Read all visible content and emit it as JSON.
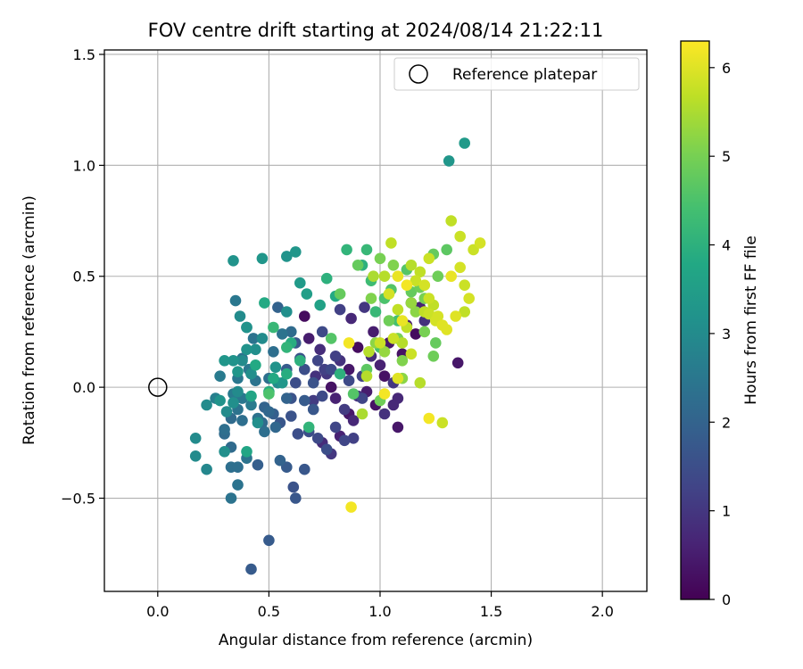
{
  "chart_data": {
    "type": "scatter",
    "title": "FOV centre drift starting at 2024/08/14 21:22:11",
    "xlabel": "Angular distance from reference (arcmin)",
    "ylabel": "Rotation from reference (arcmin)",
    "xlim": [
      -0.24,
      2.2
    ],
    "ylim": [
      -0.92,
      1.52
    ],
    "xticks": [
      0.0,
      0.5,
      1.0,
      1.5,
      2.0
    ],
    "xtick_labels": [
      "0.0",
      "0.5",
      "1.0",
      "1.5",
      "2.0"
    ],
    "yticks": [
      -0.5,
      0.0,
      0.5,
      1.0,
      1.5
    ],
    "ytick_labels": [
      "−0.5",
      "0.0",
      "0.5",
      "1.0",
      "1.5"
    ],
    "grid": true,
    "legend": {
      "placement": "top-right",
      "entries": [
        "Reference platepar"
      ]
    },
    "reference_point": {
      "name": "Reference platepar",
      "x": 0.0,
      "y": 0.0
    },
    "colorbar": {
      "label": "Hours from first FF file",
      "range": [
        0,
        6.3
      ],
      "ticks": [
        0,
        1,
        2,
        3,
        4,
        5,
        6
      ],
      "tick_labels": [
        "0",
        "1",
        "2",
        "3",
        "4",
        "5",
        "6"
      ],
      "colormap": "viridis"
    },
    "points": [
      [
        0.66,
        0.32,
        0.2
      ],
      [
        0.68,
        0.22,
        0.5
      ],
      [
        0.73,
        0.17,
        0.8
      ],
      [
        0.76,
        0.06,
        1.0
      ],
      [
        0.78,
        0.0,
        0.3
      ],
      [
        0.8,
        -0.05,
        0.6
      ],
      [
        0.82,
        0.12,
        0.9
      ],
      [
        0.84,
        -0.1,
        1.1
      ],
      [
        0.86,
        0.08,
        0.4
      ],
      [
        0.88,
        -0.15,
        0.7
      ],
      [
        0.9,
        0.18,
        0.2
      ],
      [
        0.92,
        0.05,
        1.2
      ],
      [
        0.94,
        -0.02,
        0.5
      ],
      [
        0.96,
        0.14,
        0.8
      ],
      [
        0.98,
        -0.08,
        0.3
      ],
      [
        1.0,
        0.1,
        0.6
      ],
      [
        1.02,
        -0.12,
        0.9
      ],
      [
        1.04,
        0.2,
        0.4
      ],
      [
        1.06,
        0.02,
        1.0
      ],
      [
        1.08,
        -0.05,
        0.7
      ],
      [
        1.1,
        0.15,
        0.3
      ],
      [
        1.12,
        0.28,
        0.5
      ],
      [
        1.14,
        0.38,
        0.8
      ],
      [
        1.16,
        0.24,
        0.2
      ],
      [
        1.18,
        0.36,
        0.6
      ],
      [
        1.2,
        0.3,
        0.9
      ],
      [
        0.7,
        -0.06,
        1.1
      ],
      [
        0.74,
        -0.25,
        0.8
      ],
      [
        0.78,
        -0.3,
        1.0
      ],
      [
        0.82,
        -0.22,
        0.6
      ],
      [
        0.86,
        -0.12,
        0.4
      ],
      [
        0.9,
        -0.04,
        0.9
      ],
      [
        0.97,
        0.25,
        0.5
      ],
      [
        1.02,
        0.05,
        0.3
      ],
      [
        1.06,
        -0.08,
        0.7
      ],
      [
        1.08,
        -0.18,
        0.4
      ],
      [
        1.35,
        0.11,
        0.4
      ],
      [
        0.87,
        0.31,
        0.7
      ],
      [
        0.82,
        0.35,
        1.2
      ],
      [
        0.93,
        0.36,
        1.0
      ],
      [
        0.75,
        0.08,
        1.2
      ],
      [
        0.71,
        0.05,
        0.9
      ],
      [
        0.42,
        -0.82,
        1.8
      ],
      [
        0.5,
        -0.69,
        1.8
      ],
      [
        0.62,
        -0.5,
        1.7
      ],
      [
        0.61,
        -0.45,
        1.6
      ],
      [
        0.45,
        -0.35,
        1.9
      ],
      [
        0.55,
        -0.33,
        2.0
      ],
      [
        0.58,
        -0.36,
        1.8
      ],
      [
        0.66,
        -0.37,
        1.7
      ],
      [
        0.63,
        -0.21,
        1.5
      ],
      [
        0.6,
        -0.13,
        1.6
      ],
      [
        0.52,
        -0.12,
        1.9
      ],
      [
        0.48,
        -0.09,
        2.0
      ],
      [
        0.55,
        -0.16,
        1.7
      ],
      [
        0.6,
        -0.05,
        1.6
      ],
      [
        0.62,
        0.02,
        1.5
      ],
      [
        0.58,
        0.08,
        1.8
      ],
      [
        0.64,
        0.13,
        1.6
      ],
      [
        0.7,
        -0.1,
        1.7
      ],
      [
        0.68,
        -0.2,
        1.5
      ],
      [
        0.72,
        -0.23,
        1.4
      ],
      [
        0.76,
        -0.28,
        1.5
      ],
      [
        0.8,
        -0.18,
        1.3
      ],
      [
        0.74,
        -0.04,
        1.4
      ],
      [
        0.7,
        0.02,
        1.6
      ],
      [
        0.72,
        0.12,
        1.3
      ],
      [
        0.78,
        0.08,
        1.4
      ],
      [
        0.8,
        0.14,
        1.2
      ],
      [
        0.66,
        0.08,
        1.5
      ],
      [
        0.62,
        0.2,
        1.7
      ],
      [
        0.74,
        0.25,
        1.4
      ],
      [
        0.66,
        -0.06,
        1.8
      ],
      [
        0.54,
        0.36,
        2.0
      ],
      [
        0.58,
        -0.05,
        2.0
      ],
      [
        0.84,
        -0.24,
        1.3
      ],
      [
        0.88,
        -0.23,
        1.2
      ],
      [
        0.92,
        -0.05,
        1.3
      ],
      [
        0.86,
        0.03,
        1.4
      ],
      [
        0.33,
        -0.5,
        2.4
      ],
      [
        0.36,
        -0.44,
        2.4
      ],
      [
        0.33,
        -0.36,
        2.3
      ],
      [
        0.3,
        -0.21,
        2.2
      ],
      [
        0.33,
        -0.27,
        2.2
      ],
      [
        0.36,
        -0.36,
        2.3
      ],
      [
        0.4,
        -0.32,
        2.4
      ],
      [
        0.3,
        -0.19,
        2.3
      ],
      [
        0.33,
        -0.14,
        2.2
      ],
      [
        0.36,
        -0.1,
        2.4
      ],
      [
        0.38,
        -0.05,
        2.5
      ],
      [
        0.42,
        -0.08,
        2.6
      ],
      [
        0.38,
        -0.15,
        2.3
      ],
      [
        0.45,
        -0.14,
        2.4
      ],
      [
        0.48,
        -0.2,
        2.3
      ],
      [
        0.44,
        0.03,
        2.4
      ],
      [
        0.41,
        0.08,
        2.5
      ],
      [
        0.38,
        0.13,
        2.4
      ],
      [
        0.36,
        0.04,
        2.5
      ],
      [
        0.34,
        -0.03,
        2.6
      ],
      [
        0.4,
        0.27,
        2.3
      ],
      [
        0.43,
        0.22,
        2.4
      ],
      [
        0.35,
        0.39,
        2.5
      ],
      [
        0.52,
        0.16,
        2.3
      ],
      [
        0.56,
        0.24,
        2.4
      ],
      [
        0.6,
        0.25,
        2.2
      ],
      [
        0.5,
        0.04,
        2.3
      ],
      [
        0.28,
        0.05,
        2.6
      ],
      [
        0.26,
        -0.05,
        2.7
      ],
      [
        0.47,
        -0.16,
        2.2
      ],
      [
        0.5,
        -0.11,
        2.1
      ],
      [
        0.53,
        -0.18,
        2.1
      ],
      [
        0.17,
        -0.31,
        3.0
      ],
      [
        0.17,
        -0.23,
        3.0
      ],
      [
        0.22,
        -0.37,
        2.9
      ],
      [
        0.22,
        -0.08,
        3.0
      ],
      [
        0.3,
        -0.29,
        3.1
      ],
      [
        0.28,
        -0.06,
        3.2
      ],
      [
        0.31,
        -0.11,
        3.0
      ],
      [
        0.34,
        -0.07,
        3.1
      ],
      [
        0.36,
        -0.02,
        3.0
      ],
      [
        0.3,
        0.12,
        3.3
      ],
      [
        0.34,
        0.12,
        3.2
      ],
      [
        0.38,
        0.12,
        3.0
      ],
      [
        0.4,
        0.17,
        3.2
      ],
      [
        0.42,
        0.06,
        3.1
      ],
      [
        0.37,
        0.32,
        3.0
      ],
      [
        0.4,
        0.27,
        3.2
      ],
      [
        0.34,
        0.57,
        3.2
      ],
      [
        0.47,
        0.58,
        3.3
      ],
      [
        0.58,
        0.59,
        3.2
      ],
      [
        0.62,
        0.61,
        3.3
      ],
      [
        0.58,
        0.34,
        3.1
      ],
      [
        0.45,
        -0.16,
        3.1
      ],
      [
        0.36,
        0.07,
        3.3
      ],
      [
        0.44,
        0.17,
        3.1
      ],
      [
        0.47,
        0.22,
        3.0
      ],
      [
        0.53,
        0.09,
        3.2
      ],
      [
        0.56,
        0.02,
        3.3
      ],
      [
        0.64,
        0.47,
        3.4
      ],
      [
        0.67,
        0.42,
        3.5
      ],
      [
        0.73,
        0.37,
        3.6
      ],
      [
        1.31,
        1.02,
        3.3
      ],
      [
        1.38,
        1.1,
        3.4
      ],
      [
        0.54,
        0.02,
        3.0
      ],
      [
        0.4,
        -0.29,
        3.7
      ],
      [
        0.42,
        -0.04,
        3.7
      ],
      [
        0.44,
        0.1,
        3.8
      ],
      [
        0.48,
        0.38,
        3.8
      ],
      [
        0.5,
        -0.02,
        3.9
      ],
      [
        0.52,
        0.04,
        3.8
      ],
      [
        0.58,
        0.06,
        3.9
      ],
      [
        0.6,
        0.2,
        3.9
      ],
      [
        0.64,
        0.12,
        4.0
      ],
      [
        0.58,
        0.18,
        4.1
      ],
      [
        0.52,
        0.27,
        4.2
      ],
      [
        0.68,
        -0.18,
        4.1
      ],
      [
        0.76,
        0.49,
        4.0
      ],
      [
        0.8,
        0.41,
        3.8
      ],
      [
        0.82,
        0.06,
        4.0
      ],
      [
        0.85,
        0.62,
        4.1
      ],
      [
        0.92,
        0.55,
        4.0
      ],
      [
        0.94,
        0.62,
        4.2
      ],
      [
        0.96,
        0.48,
        4.3
      ],
      [
        0.98,
        0.34,
        4.2
      ],
      [
        1.0,
        0.18,
        4.4
      ],
      [
        1.02,
        0.4,
        4.5
      ],
      [
        1.05,
        0.44,
        4.6
      ],
      [
        1.08,
        0.3,
        4.4
      ],
      [
        1.12,
        0.53,
        4.6
      ],
      [
        1.14,
        0.43,
        4.8
      ],
      [
        1.18,
        0.45,
        4.9
      ],
      [
        1.2,
        0.4,
        5.0
      ],
      [
        1.24,
        0.6,
        4.8
      ],
      [
        1.26,
        0.5,
        4.9
      ],
      [
        1.3,
        0.62,
        4.7
      ],
      [
        1.25,
        0.2,
        4.8
      ],
      [
        1.24,
        0.14,
        4.9
      ],
      [
        1.2,
        0.25,
        5.0
      ],
      [
        0.88,
        -0.03,
        4.6
      ],
      [
        0.94,
        0.08,
        4.7
      ],
      [
        1.0,
        -0.06,
        4.9
      ],
      [
        0.5,
        -0.03,
        4.5
      ],
      [
        0.78,
        0.22,
        4.6
      ],
      [
        0.82,
        0.42,
        4.8
      ],
      [
        0.9,
        0.55,
        4.8
      ],
      [
        1.0,
        0.58,
        5.0
      ],
      [
        1.06,
        0.55,
        5.1
      ],
      [
        1.04,
        0.3,
        4.9
      ],
      [
        1.08,
        0.22,
        5.0
      ],
      [
        1.1,
        0.12,
        5.1
      ],
      [
        0.98,
        0.2,
        5.2
      ],
      [
        0.96,
        0.4,
        5.1
      ],
      [
        1.02,
        0.16,
        5.3
      ],
      [
        1.1,
        0.04,
        5.2
      ],
      [
        1.14,
        0.38,
        5.3
      ],
      [
        1.16,
        0.34,
        5.2
      ],
      [
        0.86,
        0.2,
        6.2
      ],
      [
        0.87,
        -0.54,
        6.2
      ],
      [
        1.02,
        -0.03,
        6.2
      ],
      [
        1.08,
        0.04,
        6.0
      ],
      [
        1.1,
        0.3,
        6.1
      ],
      [
        1.08,
        0.5,
        6.1
      ],
      [
        1.12,
        0.46,
        6.2
      ],
      [
        1.22,
        -0.14,
        6.2
      ],
      [
        1.28,
        -0.16,
        5.8
      ],
      [
        1.25,
        0.3,
        5.9
      ],
      [
        1.22,
        0.33,
        5.8
      ],
      [
        1.2,
        0.34,
        5.7
      ],
      [
        1.24,
        0.37,
        5.7
      ],
      [
        1.26,
        0.32,
        5.9
      ],
      [
        1.28,
        0.28,
        6.0
      ],
      [
        1.3,
        0.26,
        6.0
      ],
      [
        1.32,
        0.5,
        6.1
      ],
      [
        1.34,
        0.32,
        6.0
      ],
      [
        1.36,
        0.54,
        5.9
      ],
      [
        1.38,
        0.46,
        5.8
      ],
      [
        1.4,
        0.4,
        5.9
      ],
      [
        1.38,
        0.34,
        5.7
      ],
      [
        1.42,
        0.62,
        5.8
      ],
      [
        1.45,
        0.65,
        5.9
      ],
      [
        1.36,
        0.68,
        5.8
      ],
      [
        1.32,
        0.75,
        5.7
      ],
      [
        1.22,
        0.58,
        5.8
      ],
      [
        1.18,
        0.52,
        5.7
      ],
      [
        1.16,
        0.48,
        5.8
      ],
      [
        1.14,
        0.55,
        5.6
      ],
      [
        1.05,
        0.65,
        5.7
      ],
      [
        1.02,
        0.5,
        5.6
      ],
      [
        0.95,
        0.16,
        5.6
      ],
      [
        0.97,
        0.5,
        5.5
      ],
      [
        0.92,
        -0.12,
        5.5
      ],
      [
        0.94,
        0.05,
        5.6
      ],
      [
        1.0,
        0.2,
        5.8
      ],
      [
        1.04,
        0.42,
        5.9
      ],
      [
        1.06,
        0.22,
        5.8
      ],
      [
        1.08,
        0.35,
        5.7
      ],
      [
        1.1,
        0.2,
        5.6
      ],
      [
        1.12,
        0.27,
        5.7
      ],
      [
        1.14,
        0.15,
        5.8
      ],
      [
        1.18,
        0.02,
        5.6
      ],
      [
        1.2,
        0.46,
        5.9
      ],
      [
        1.22,
        0.4,
        5.8
      ]
    ]
  }
}
